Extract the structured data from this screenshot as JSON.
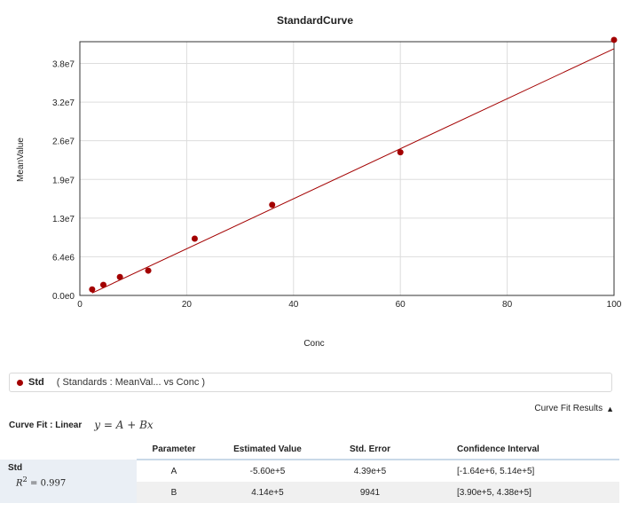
{
  "chart_data": {
    "type": "scatter",
    "title": "StandardCurve",
    "xlabel": "Conc",
    "ylabel": "MeanValue",
    "xlim": [
      0,
      100
    ],
    "ylim": [
      0,
      42000000
    ],
    "xticks": [
      0,
      20,
      40,
      60,
      80,
      100
    ],
    "xtick_labels": [
      "0",
      "20",
      "40",
      "60",
      "80",
      "100"
    ],
    "yticks": [
      0,
      6400000,
      12800000,
      19200000,
      25600000,
      32000000,
      38400000
    ],
    "ytick_labels": [
      "0.0e0",
      "6.4e6",
      "1.3e7",
      "1.9e7",
      "2.6e7",
      "3.2e7",
      "3.8e7"
    ],
    "grid": true,
    "series": [
      {
        "name": "Std",
        "color": "#a30000",
        "points": [
          {
            "x": 2.3,
            "y": 1000000
          },
          {
            "x": 4.4,
            "y": 1750000
          },
          {
            "x": 7.5,
            "y": 3050000
          },
          {
            "x": 12.8,
            "y": 4100000
          },
          {
            "x": 21.5,
            "y": 9400000
          },
          {
            "x": 36.0,
            "y": 15000000
          },
          {
            "x": 60.0,
            "y": 23700000
          },
          {
            "x": 100.0,
            "y": 42300000
          }
        ]
      }
    ],
    "fit_line": {
      "A": -560000,
      "B": 414000,
      "color": "#a30000"
    }
  },
  "legend": {
    "name": "Std",
    "paren": "( Standards : MeanVal...   vs Conc  )"
  },
  "curve_fit_results": {
    "label": "Curve Fit Results",
    "icon": "triangle-up-icon"
  },
  "curve_fit": {
    "label": "Curve Fit : Linear",
    "equation": "y = A + Bx"
  },
  "table": {
    "headers": [
      "Parameter",
      "Estimated Value",
      "Std. Error",
      "Confidence Interval"
    ],
    "std_name": "Std",
    "r2_label": "R",
    "r2_sup": "2",
    "r2_value": " = 0.997",
    "rows": [
      {
        "parameter": "A",
        "estimate": "-5.60e+5",
        "std_error": "4.39e+5",
        "ci": "[-1.64e+6, 5.14e+5]"
      },
      {
        "parameter": "B",
        "estimate": "4.14e+5",
        "std_error": "9941",
        "ci": "[3.90e+5, 4.38e+5]"
      }
    ]
  }
}
